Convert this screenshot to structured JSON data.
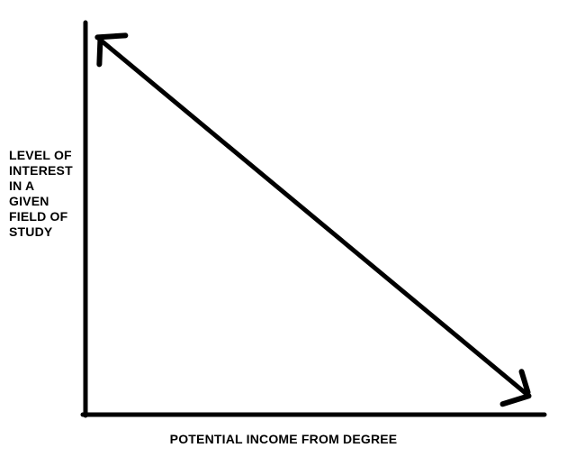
{
  "page": {
    "background": "#ffffff",
    "ink_color": "#000000"
  },
  "chart_data": {
    "type": "line",
    "title": "",
    "xlabel": "POTENTIAL INCOME FROM DEGREE",
    "ylabel": "LEVEL OF INTEREST IN A GIVEN FIELD OF STUDY",
    "ylabel_lines": [
      "LEVEL OF",
      "INTEREST",
      "IN A",
      "GIVEN",
      "FIELD OF",
      "STUDY"
    ],
    "x_range": [
      0,
      1
    ],
    "y_range": [
      0,
      1
    ],
    "grid": false,
    "axis_tick_labels": "none",
    "legend": "none",
    "style": "hand-drawn double-headed arrow, black ink on white",
    "relationship": "negative linear (inverse): higher potential income, lower level of interest",
    "series": [
      {
        "name": "interest-vs-income",
        "marker": "double-headed-arrow",
        "points": [
          [
            0.03,
            0.96
          ],
          [
            0.96,
            0.05
          ]
        ]
      }
    ]
  }
}
